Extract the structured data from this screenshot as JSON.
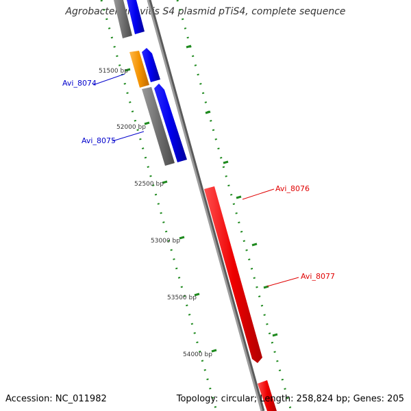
{
  "title": "Agrobacterium vitis S4 plasmid pTiS4, complete sequence",
  "footer": {
    "accession": "Accession: NC_011982",
    "summary": "Topology: circular; Length: 258,824 bp; Genes: 205"
  },
  "colors": {
    "backbone": "#8c8c8c",
    "ticks": "#1f8a1f",
    "forward_label": "#0000cc",
    "reverse_label": "#e00000",
    "gene_blue": "#0000ee",
    "gene_gray": "#707070",
    "gene_orange": "#f39200",
    "gene_red": "#ee0000"
  },
  "scale_labels": [
    "51500 bp",
    "52000 bp",
    "52500 bp",
    "53000 bp",
    "53500 bp",
    "54000 bp"
  ],
  "gene_labels": {
    "forward": [
      "Avi_8074",
      "Avi_8075"
    ],
    "reverse": [
      "Avi_8076",
      "Avi_8077"
    ]
  }
}
